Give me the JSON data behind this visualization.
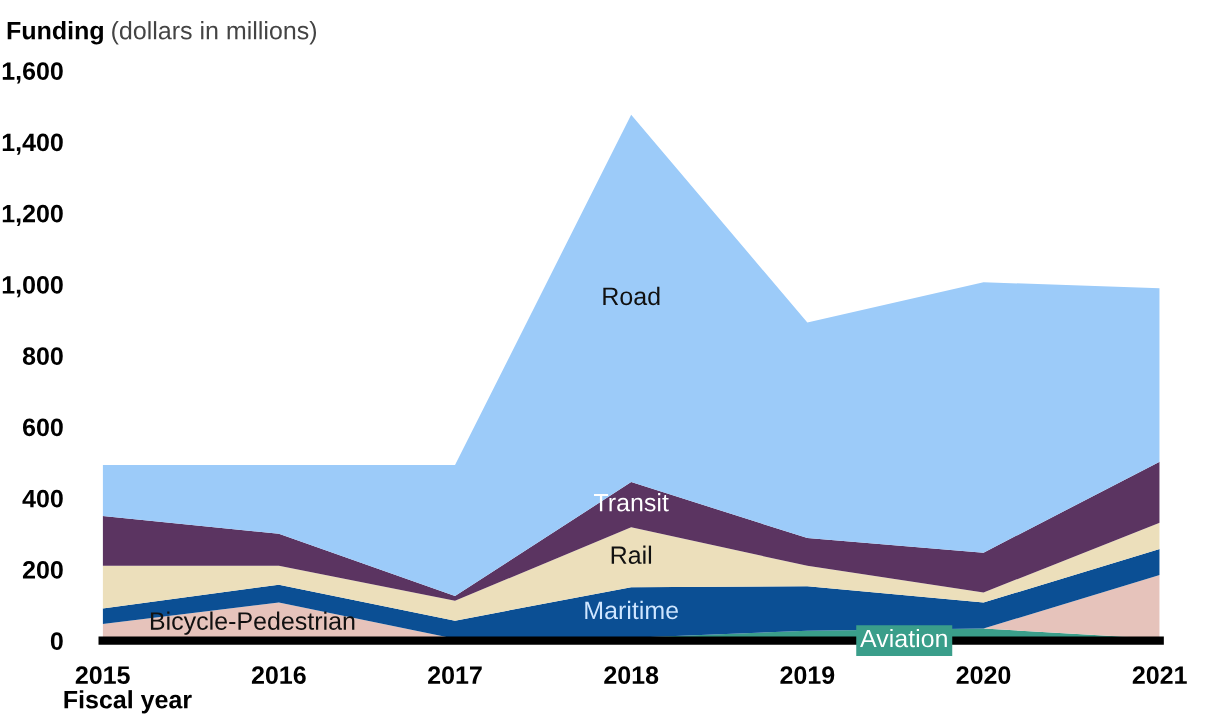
{
  "chart_data": {
    "type": "area",
    "stacked": true,
    "ylabel": "Funding (dollars in millions)",
    "xlabel": "Fiscal year",
    "categories": [
      "2015",
      "2016",
      "2017",
      "2018",
      "2019",
      "2020",
      "2021"
    ],
    "series": [
      {
        "name": "Aviation",
        "color": "#3a9e8a",
        "values": [
          0,
          0,
          0,
          8,
          28,
          34,
          5
        ]
      },
      {
        "name": "Bicycle-Pedestrian",
        "color": "#e6c3bb",
        "values": [
          47,
          107,
          5,
          0,
          0,
          0,
          179
        ]
      },
      {
        "name": "Maritime",
        "color": "#0b4f94",
        "values": [
          43,
          50,
          51,
          142,
          125,
          73,
          73
        ]
      },
      {
        "name": "Rail",
        "color": "#ecdfbb",
        "values": [
          120,
          53,
          56,
          168,
          57,
          28,
          74
        ]
      },
      {
        "name": "Transit",
        "color": "#5b3461",
        "values": [
          140,
          90,
          13,
          127,
          78,
          112,
          171
        ]
      },
      {
        "name": "Road",
        "color": "#9ccbf9",
        "values": [
          143,
          193,
          368,
          1031,
          605,
          759,
          487
        ]
      }
    ],
    "ylim": [
      0,
      1600
    ],
    "yticks": [
      {
        "value": 0,
        "label": "0"
      },
      {
        "value": 200,
        "label": "200"
      },
      {
        "value": 400,
        "label": "400"
      },
      {
        "value": 600,
        "label": "600"
      },
      {
        "value": 800,
        "label": "800"
      },
      {
        "value": 1000,
        "label": "1,000"
      },
      {
        "value": 1200,
        "label": "1,200"
      },
      {
        "value": 1400,
        "label": "1,400"
      },
      {
        "value": 1600,
        "label": "1,600"
      }
    ],
    "grid": false,
    "legend": false
  }
}
